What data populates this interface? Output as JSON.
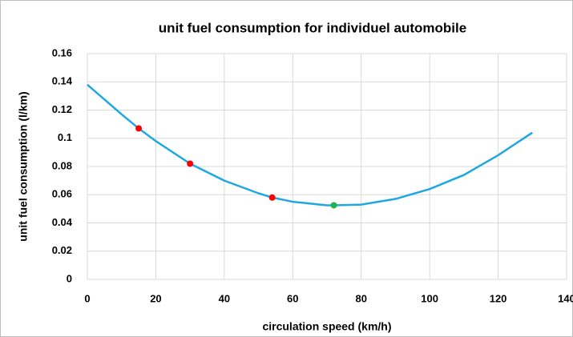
{
  "chart_data": {
    "type": "line",
    "title": "unit fuel consumption for individuel automobile",
    "x_label": "circulation speed (km/h)",
    "y_label": "unit fuel consumption (l/km)",
    "xlim": [
      0,
      140
    ],
    "xticks": [
      0,
      20,
      40,
      60,
      80,
      100,
      120,
      140
    ],
    "ylim": [
      0,
      0.16
    ],
    "yticks": [
      0,
      0.02,
      0.04,
      0.06,
      0.08,
      0.1,
      0.12,
      0.14,
      0.16
    ],
    "grid": true,
    "series": [
      {
        "type": "line",
        "color": "#1fa8e0",
        "x": [
          0,
          10,
          15,
          20,
          30,
          40,
          50,
          54,
          60,
          70,
          72,
          80,
          90,
          100,
          110,
          120,
          130
        ],
        "values": [
          0.138,
          0.117,
          0.107,
          0.098,
          0.082,
          0.07,
          0.061,
          0.058,
          0.055,
          0.0525,
          0.0525,
          0.053,
          0.057,
          0.064,
          0.074,
          0.088,
          0.104
        ]
      },
      {
        "type": "scatter",
        "color": "#ff0000",
        "x": [
          15,
          30,
          54
        ],
        "values": [
          0.107,
          0.082,
          0.058
        ]
      },
      {
        "type": "scatter",
        "color": "#22b14c",
        "x": [
          72
        ],
        "values": [
          0.0525
        ]
      }
    ]
  }
}
